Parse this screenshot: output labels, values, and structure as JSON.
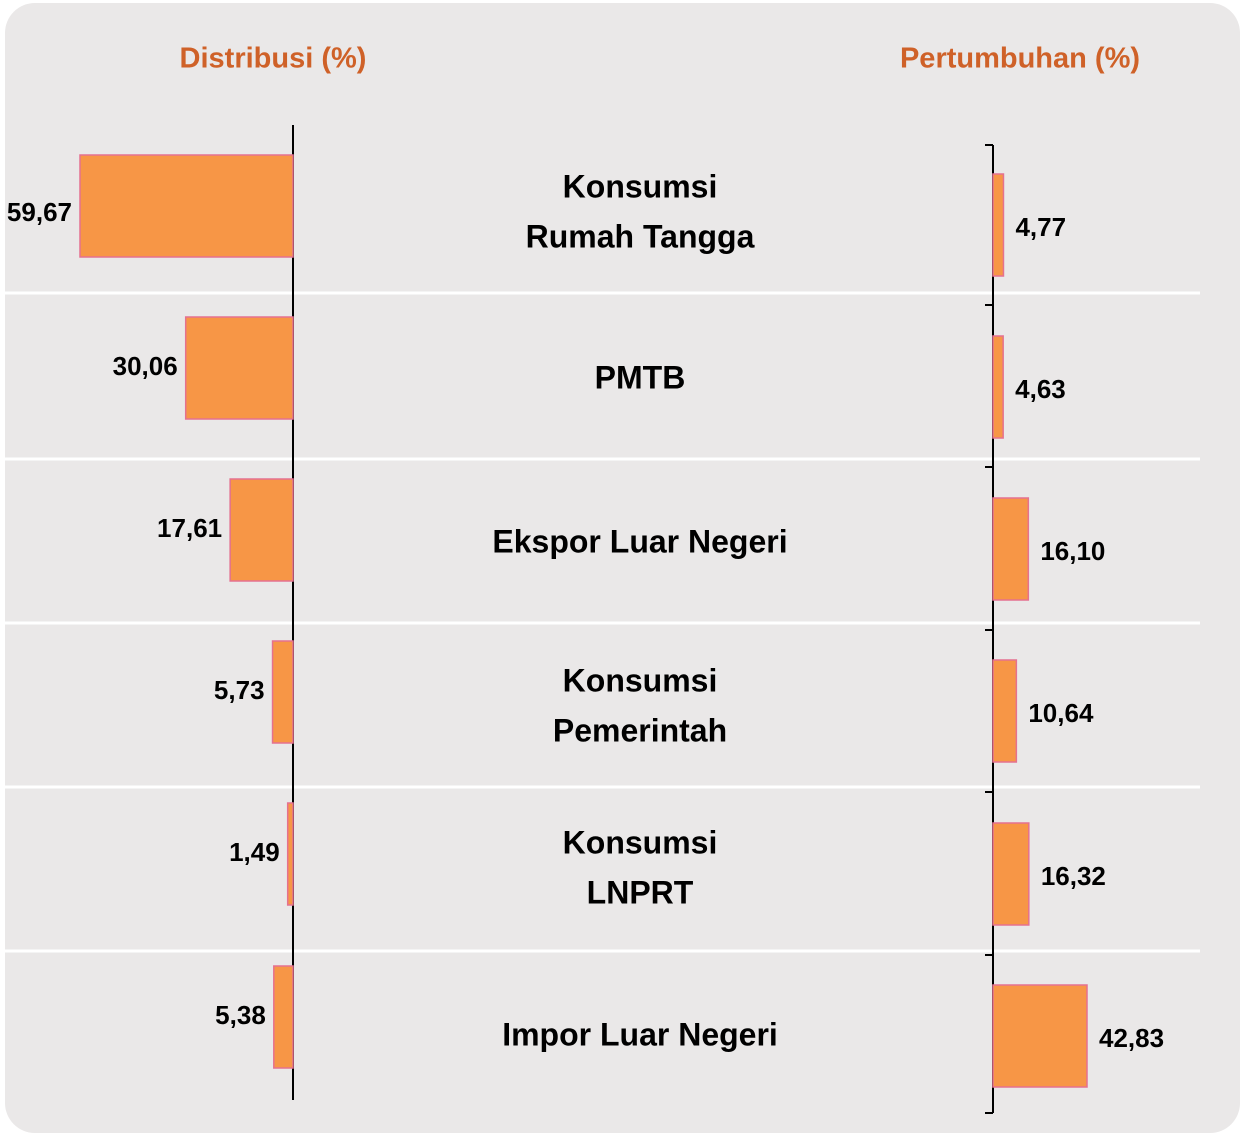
{
  "chart_data": {
    "type": "bar",
    "categories": [
      [
        "Konsumsi",
        "Rumah Tangga"
      ],
      [
        "PMTB"
      ],
      [
        "Ekspor Luar Negeri"
      ],
      [
        "Konsumsi",
        "Pemerintah"
      ],
      [
        "Konsumsi",
        "LNPRT"
      ],
      [
        "Impor Luar Negeri"
      ]
    ],
    "series": [
      {
        "name": "Distribusi (%)",
        "color": "#f79646",
        "values": [
          59.67,
          30.06,
          17.61,
          5.73,
          1.49,
          5.38
        ],
        "value_labels": [
          "59,67",
          "30,06",
          "17,61",
          "5,73",
          "1,49",
          "5,38"
        ]
      },
      {
        "name": "Pertumbuhan (%)",
        "color": "#f79646",
        "values": [
          4.77,
          4.63,
          16.1,
          10.64,
          16.32,
          42.83
        ],
        "value_labels": [
          "4,77",
          "4,63",
          "16,10",
          "10,64",
          "16,32",
          "42,83"
        ]
      }
    ]
  }
}
